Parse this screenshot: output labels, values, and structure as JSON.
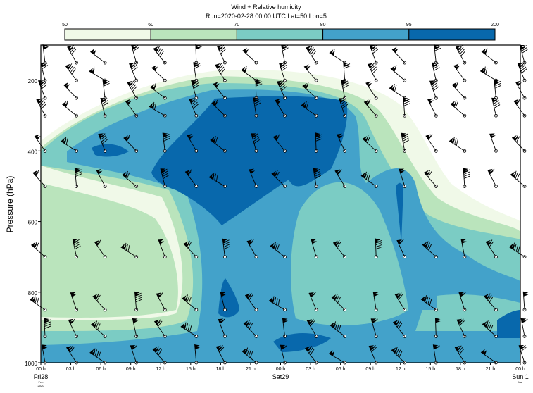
{
  "chart_data": {
    "type": "heatmap",
    "title": "Wind + Relative humidity",
    "subtitle": "Run=2020-02-28 00:00 UTC Lat=50 Lon=5",
    "ylabel": "Pressure (hPa)",
    "ylim": [
      1000,
      100
    ],
    "yticks": [
      200,
      400,
      600,
      800,
      1000
    ],
    "xticks": [
      "00 h",
      "03 h",
      "06 h",
      "09 h",
      "12 h",
      "15 h",
      "18 h",
      "21 h",
      "00 h",
      "03 h",
      "06 h",
      "09 h",
      "12 h",
      "15 h",
      "18 h",
      "21 h",
      "00 h"
    ],
    "day_labels": [
      {
        "label": "Fri28",
        "sub1": "Feb",
        "sub2": "2020",
        "color": "#000000"
      },
      {
        "label": "Sat29",
        "sub1": "",
        "sub2": "",
        "color": "#000000"
      },
      {
        "label": "Sun 1",
        "sub1": "Mar",
        "sub2": "",
        "color": "#e00000"
      }
    ],
    "colorbar": {
      "levels": [
        "50",
        "60",
        "70",
        "80",
        "95",
        "200"
      ],
      "colors": [
        "#f0f9e8",
        "#bae4bc",
        "#7bccc4",
        "#43a2ca",
        "#0868ac"
      ]
    },
    "humidity_bands_percent": [
      50,
      60,
      70,
      80,
      95
    ],
    "wind_barb_levels_hpa": [
      100,
      150,
      200,
      250,
      300,
      400,
      500,
      700,
      850,
      925,
      1000
    ]
  }
}
